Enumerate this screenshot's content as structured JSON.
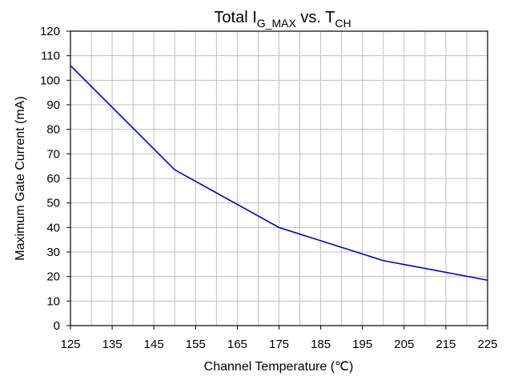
{
  "chart_data": {
    "type": "line",
    "title": {
      "prefix": "Total I",
      "sub1": "G_MAX",
      "mid": " vs. T",
      "sub2": "CH"
    },
    "xlabel": "Channel Temperature (℃)",
    "ylabel": "Maximum Gate Current (mA)",
    "xlim": [
      125,
      225
    ],
    "ylim": [
      0,
      120
    ],
    "xticks": [
      125,
      135,
      145,
      155,
      165,
      175,
      185,
      195,
      205,
      215,
      225
    ],
    "yticks": [
      0,
      10,
      20,
      30,
      40,
      50,
      60,
      70,
      80,
      90,
      100,
      110,
      120
    ],
    "grid": true,
    "series": [
      {
        "color": "#0000cc",
        "x": [
          125,
          150,
          175,
          200,
          225
        ],
        "y": [
          106,
          63.5,
          40,
          26.5,
          18.5
        ]
      }
    ]
  }
}
